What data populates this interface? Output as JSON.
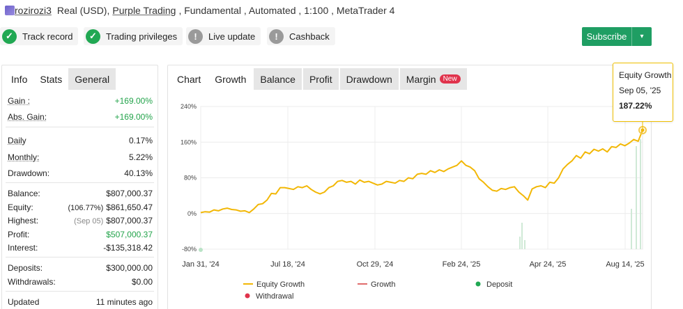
{
  "header": {
    "username": "rozirozi3",
    "account_type": "Real (USD),",
    "broker": "Purple Trading",
    "details": ", Fundamental , Automated , 1:100 , MetaTrader 4"
  },
  "badges": [
    {
      "label": "Track record",
      "status": "check",
      "color": "#21a853"
    },
    {
      "label": "Trading privileges",
      "status": "check",
      "color": "#21a853"
    },
    {
      "label": "Live update",
      "status": "exclamation",
      "color": "#9a9a9a"
    },
    {
      "label": "Cashback",
      "status": "exclamation",
      "color": "#9a9a9a"
    }
  ],
  "subscribe": {
    "label": "Subscribe",
    "caret": "chevron-down-icon",
    "color": "#1f9e63"
  },
  "left_tabs": [
    "Info",
    "Stats",
    "General"
  ],
  "stats": {
    "gain": {
      "label": "Gain :",
      "value": "+169.00%"
    },
    "abs_gain": {
      "label": "Abs. Gain:",
      "value": "+169.00%"
    },
    "daily": {
      "label": "Daily",
      "value": "0.17%"
    },
    "monthly": {
      "label": "Monthly:",
      "value": "5.22%"
    },
    "drawdown": {
      "label": "Drawdown:",
      "value": "40.13%"
    },
    "balance": {
      "label": "Balance:",
      "value": "$807,000.37"
    },
    "equity": {
      "label": "Equity:",
      "note": "(106.77%)",
      "value": "$861,650.47"
    },
    "highest": {
      "label": "Highest:",
      "note": "(Sep 05)",
      "value": "$807,000.37"
    },
    "profit": {
      "label": "Profit:",
      "value": "$507,000.37"
    },
    "interest": {
      "label": "Interest:",
      "value": "-$135,318.42"
    },
    "deposits": {
      "label": "Deposits:",
      "value": "$300,000.00"
    },
    "withdrawals": {
      "label": "Withdrawals:",
      "value": "$0.00"
    },
    "updated": {
      "label": "Updated",
      "value": "11 minutes ago"
    }
  },
  "chart_tabs": [
    "Chart",
    "Growth",
    "Balance",
    "Profit",
    "Drawdown",
    "Margin"
  ],
  "new_badge": "New",
  "tooltip": {
    "title": "Equity Growth",
    "date": "Sep 05, '25",
    "value": "187.22%"
  },
  "chart_data": {
    "type": "line",
    "y_ticks": [
      "240%",
      "160%",
      "80%",
      "0%",
      "-80%"
    ],
    "ylim": [
      -80,
      240
    ],
    "x_ticks": [
      "Jan 31, '24",
      "Jul 18, '24",
      "Oct 29, '24",
      "Feb 24, '25",
      "Apr 24, '25",
      "Aug 14, '25"
    ],
    "series": [
      {
        "name": "Equity Growth",
        "color": "#f2b705",
        "points": [
          [
            0,
            2
          ],
          [
            0.01,
            4
          ],
          [
            0.02,
            3
          ],
          [
            0.03,
            8
          ],
          [
            0.04,
            6
          ],
          [
            0.05,
            10
          ],
          [
            0.06,
            12
          ],
          [
            0.07,
            9
          ],
          [
            0.08,
            8
          ],
          [
            0.09,
            5
          ],
          [
            0.1,
            6
          ],
          [
            0.11,
            2
          ],
          [
            0.12,
            10
          ],
          [
            0.13,
            20
          ],
          [
            0.14,
            22
          ],
          [
            0.15,
            30
          ],
          [
            0.16,
            45
          ],
          [
            0.17,
            44
          ],
          [
            0.18,
            58
          ],
          [
            0.19,
            58
          ],
          [
            0.2,
            56
          ],
          [
            0.21,
            54
          ],
          [
            0.22,
            60
          ],
          [
            0.23,
            58
          ],
          [
            0.24,
            62
          ],
          [
            0.25,
            54
          ],
          [
            0.26,
            48
          ],
          [
            0.27,
            44
          ],
          [
            0.28,
            48
          ],
          [
            0.29,
            58
          ],
          [
            0.3,
            62
          ],
          [
            0.31,
            72
          ],
          [
            0.32,
            74
          ],
          [
            0.33,
            70
          ],
          [
            0.34,
            72
          ],
          [
            0.35,
            66
          ],
          [
            0.36,
            75
          ],
          [
            0.37,
            70
          ],
          [
            0.38,
            72
          ],
          [
            0.39,
            68
          ],
          [
            0.4,
            64
          ],
          [
            0.41,
            66
          ],
          [
            0.42,
            72
          ],
          [
            0.43,
            70
          ],
          [
            0.44,
            68
          ],
          [
            0.45,
            74
          ],
          [
            0.46,
            72
          ],
          [
            0.47,
            80
          ],
          [
            0.48,
            78
          ],
          [
            0.49,
            88
          ],
          [
            0.5,
            90
          ],
          [
            0.51,
            88
          ],
          [
            0.52,
            96
          ],
          [
            0.53,
            92
          ],
          [
            0.54,
            98
          ],
          [
            0.55,
            94
          ],
          [
            0.56,
            100
          ],
          [
            0.57,
            104
          ],
          [
            0.58,
            108
          ],
          [
            0.59,
            118
          ],
          [
            0.6,
            108
          ],
          [
            0.61,
            104
          ],
          [
            0.62,
            96
          ],
          [
            0.63,
            78
          ],
          [
            0.64,
            70
          ],
          [
            0.65,
            60
          ],
          [
            0.66,
            52
          ],
          [
            0.67,
            50
          ],
          [
            0.68,
            56
          ],
          [
            0.69,
            54
          ],
          [
            0.7,
            58
          ],
          [
            0.71,
            60
          ],
          [
            0.72,
            48
          ],
          [
            0.73,
            40
          ],
          [
            0.74,
            30
          ],
          [
            0.75,
            55
          ],
          [
            0.76,
            60
          ],
          [
            0.77,
            62
          ],
          [
            0.78,
            58
          ],
          [
            0.79,
            70
          ],
          [
            0.8,
            68
          ],
          [
            0.81,
            80
          ],
          [
            0.82,
            100
          ],
          [
            0.83,
            110
          ],
          [
            0.84,
            118
          ],
          [
            0.85,
            130
          ],
          [
            0.86,
            124
          ],
          [
            0.87,
            138
          ],
          [
            0.88,
            134
          ],
          [
            0.89,
            144
          ],
          [
            0.9,
            140
          ],
          [
            0.91,
            145
          ],
          [
            0.92,
            138
          ],
          [
            0.93,
            150
          ],
          [
            0.94,
            148
          ],
          [
            0.95,
            156
          ],
          [
            0.96,
            152
          ],
          [
            0.97,
            158
          ],
          [
            0.98,
            166
          ],
          [
            0.99,
            162
          ],
          [
            1.0,
            187
          ]
        ]
      },
      {
        "name": "Growth",
        "color": "#e06b6b"
      },
      {
        "name": "Deposit",
        "color": "#21a853"
      },
      {
        "name": "Withdrawal",
        "color": "#e0334c"
      }
    ],
    "grid": true
  }
}
